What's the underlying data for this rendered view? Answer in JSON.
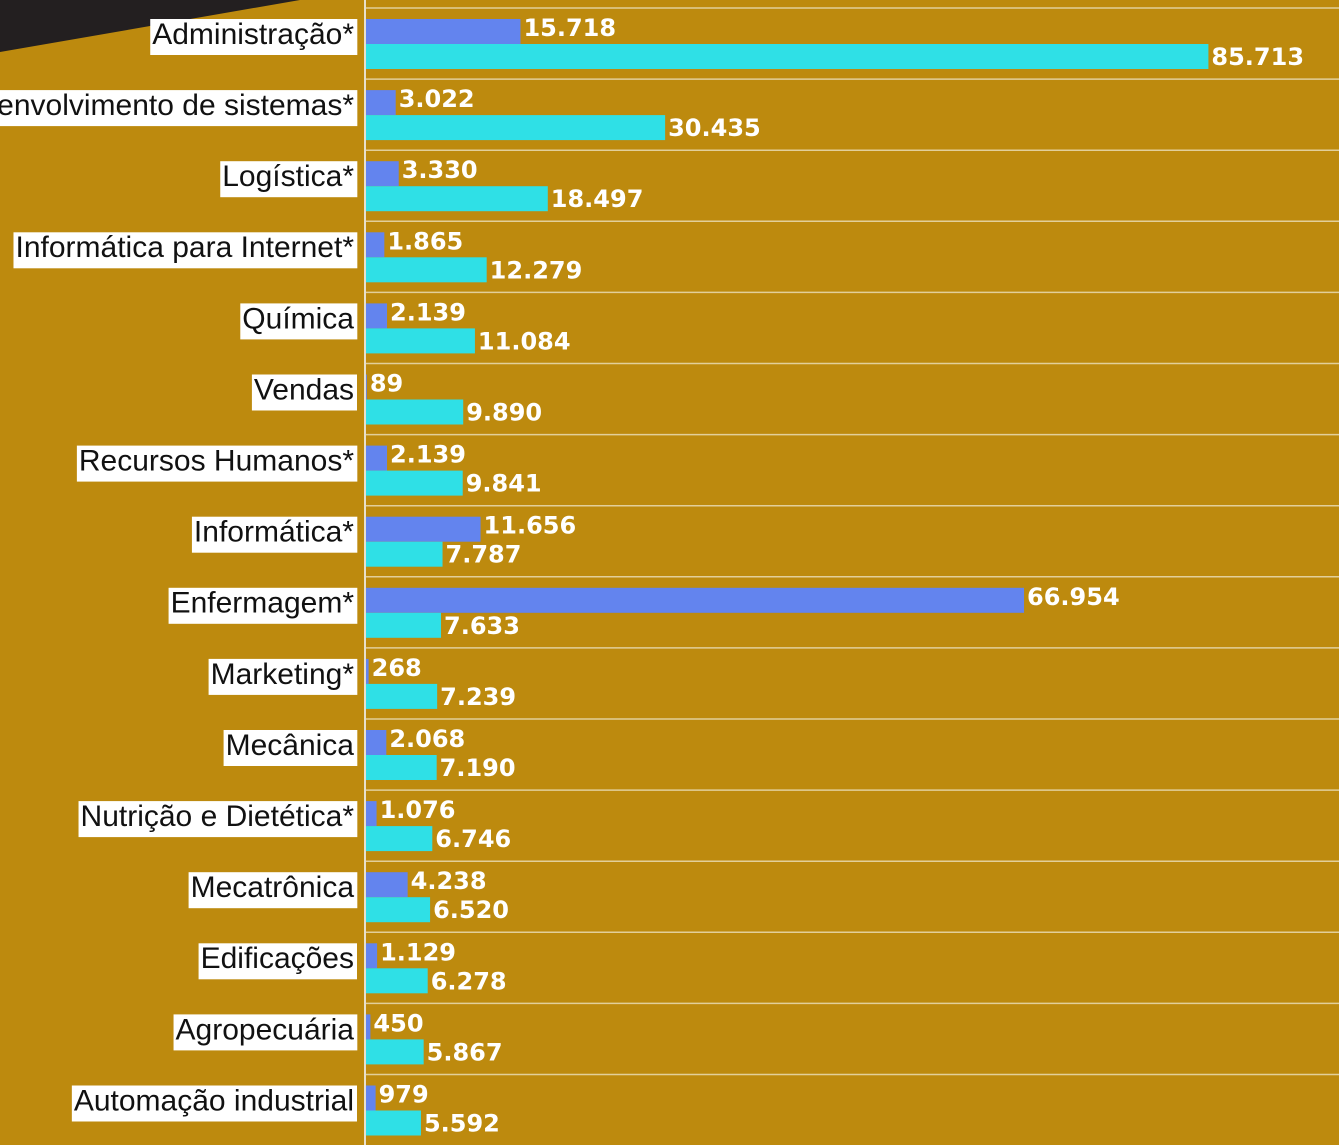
{
  "chart_data": {
    "type": "bar",
    "orientation": "horizontal",
    "categories": [
      "Administração*",
      "Desenvolvimento de sistemas*",
      "Logística*",
      "Informática para Internet*",
      "Química",
      "Vendas",
      "Recursos Humanos*",
      "Informática*",
      "Enfermagem*",
      "Marketing*",
      "Mecânica",
      "Nutrição e Dietética*",
      "Mecatrônica",
      "Edificações",
      "Agropecuária",
      "Automação industrial"
    ],
    "series": [
      {
        "color": "#6384ee",
        "values": [
          15718,
          3022,
          3330,
          1865,
          2139,
          89,
          2139,
          11656,
          66954,
          268,
          2068,
          1076,
          4238,
          1129,
          450,
          979
        ],
        "value_labels": [
          "15.718",
          "3.022",
          "3.330",
          "1.865",
          "2.139",
          "89",
          "2.139",
          "11.656",
          "66.954",
          "268",
          "2.068",
          "1.076",
          "4.238",
          "1.129",
          "450",
          "979"
        ]
      },
      {
        "color": "#2fe0e6",
        "values": [
          85713,
          30435,
          18497,
          12279,
          11084,
          9890,
          9841,
          7787,
          7633,
          7239,
          7190,
          6746,
          6520,
          6278,
          5867,
          5592
        ],
        "value_labels": [
          "85.713",
          "30.435",
          "18.497",
          "12.279",
          "11.084",
          "9.890",
          "9.841",
          "7.787",
          "7.633",
          "7.239",
          "7.190",
          "6.746",
          "6.520",
          "6.278",
          "5.867",
          "5.592"
        ]
      }
    ],
    "xlim": [
      0,
      99000
    ]
  }
}
